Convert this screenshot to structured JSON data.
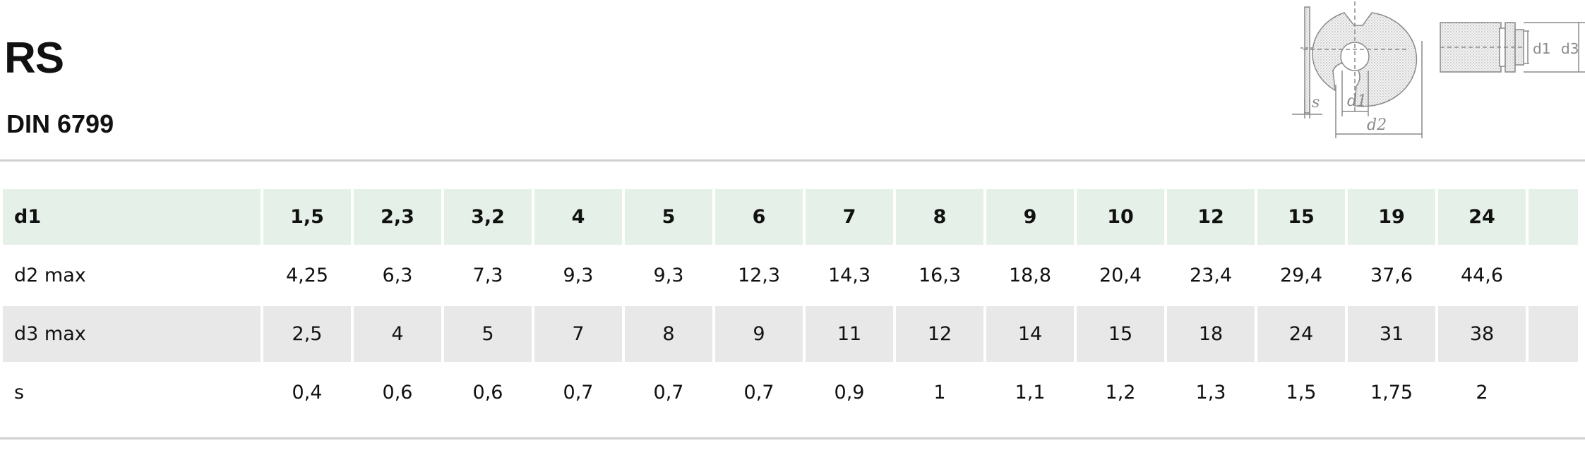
{
  "header": {
    "title": "RS",
    "subtitle": "DIN 6799"
  },
  "drawing": {
    "labels": {
      "s": "s",
      "d1": "d1",
      "d2": "d2",
      "side_d1": "d1",
      "side_d3": "d3"
    }
  },
  "table": {
    "rows": [
      {
        "label": "d1",
        "values": [
          "1,5",
          "2,3",
          "3,2",
          "4",
          "5",
          "6",
          "7",
          "8",
          "9",
          "10",
          "12",
          "15",
          "19",
          "24"
        ]
      },
      {
        "label": "d2 max",
        "values": [
          "4,25",
          "6,3",
          "7,3",
          "9,3",
          "9,3",
          "12,3",
          "14,3",
          "16,3",
          "18,8",
          "20,4",
          "23,4",
          "29,4",
          "37,6",
          "44,6"
        ]
      },
      {
        "label": "d3 max",
        "values": [
          "2,5",
          "4",
          "5",
          "7",
          "8",
          "9",
          "11",
          "12",
          "14",
          "15",
          "18",
          "24",
          "31",
          "38"
        ]
      },
      {
        "label": "s",
        "values": [
          "0,4",
          "0,6",
          "0,6",
          "0,7",
          "0,7",
          "0,7",
          "0,9",
          "1",
          "1,1",
          "1,2",
          "1,3",
          "1,5",
          "1,75",
          "2"
        ]
      }
    ]
  },
  "colors": {
    "header_row": "#e5f1e8",
    "alt_row": "#e8e8e8",
    "rule": "#cfcfcf",
    "drawing_stroke": "#8a8a8a"
  }
}
